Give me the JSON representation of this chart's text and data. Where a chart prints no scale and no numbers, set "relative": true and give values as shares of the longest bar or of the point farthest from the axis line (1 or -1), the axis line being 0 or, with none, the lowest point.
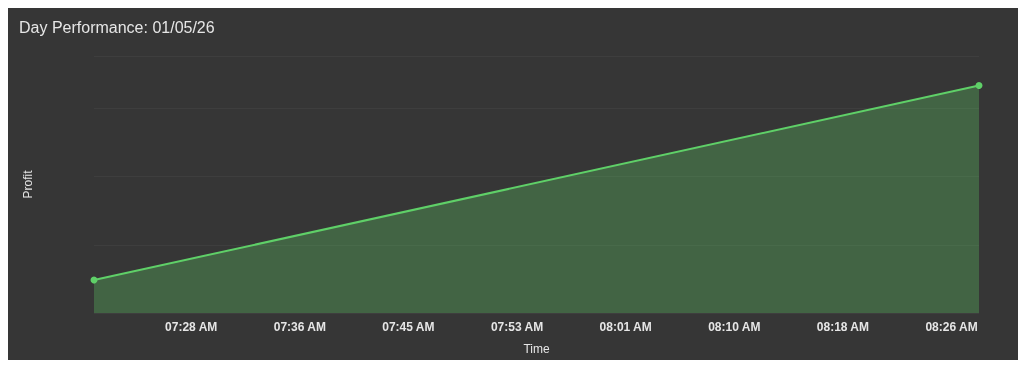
{
  "chart_data": {
    "type": "area",
    "title": "Day Performance: 01/05/26",
    "xlabel": "Time",
    "ylabel": "Profit",
    "relative": true,
    "x": [
      7.3424,
      8.474
    ],
    "series": [
      {
        "color": "#5fd068",
        "values": [
          0.145,
          1
        ]
      }
    ],
    "xlim": [
      7.3424,
      8.474
    ],
    "xticks": [
      {
        "value": 7.4667,
        "label": "07:28 AM"
      },
      {
        "value": 7.6056,
        "label": "07:36 AM"
      },
      {
        "value": 7.7444,
        "label": "07:45 AM"
      },
      {
        "value": 7.8833,
        "label": "07:53 AM"
      },
      {
        "value": 8.0222,
        "label": "08:01 AM"
      },
      {
        "value": 8.1611,
        "label": "08:10 AM"
      },
      {
        "value": 8.3,
        "label": "08:18 AM"
      },
      {
        "value": 8.4389,
        "label": "08:26 AM"
      }
    ],
    "grid": "y",
    "marker": "circle"
  }
}
